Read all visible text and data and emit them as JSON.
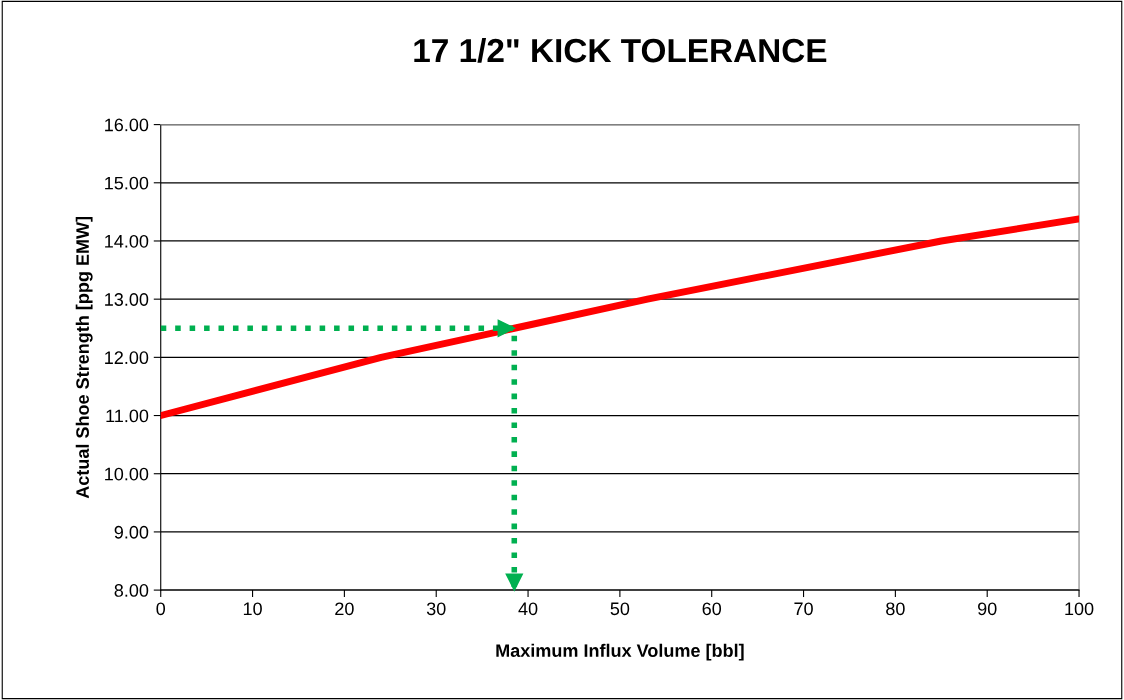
{
  "chart_data": {
    "type": "line",
    "title": "17 1/2\" KICK TOLERANCE",
    "xlabel": "Maximum Influx Volume [bbl]",
    "ylabel": "Actual Shoe Strength [ppg EMW]",
    "series": [
      {
        "color": "#ff0000",
        "x": [
          0,
          24,
          38.5,
          53,
          85,
          100
        ],
        "values": [
          11.0,
          12.0,
          12.5,
          13.0,
          14.0,
          14.38
        ],
        "line_style": "solid"
      },
      {
        "color": "#00b050",
        "x": [
          0,
          38.5,
          38.5
        ],
        "values": [
          12.5,
          12.5,
          8.0
        ],
        "line_style": "dotted"
      }
    ],
    "xlim": [
      0,
      100
    ],
    "xticks": [
      0,
      10,
      20,
      30,
      40,
      50,
      60,
      70,
      80,
      90,
      100
    ],
    "ylim": [
      8,
      16
    ],
    "yticks": [
      {
        "value": 8,
        "label": "8.00"
      },
      {
        "value": 9,
        "label": "9.00"
      },
      {
        "value": 10,
        "label": "10.00"
      },
      {
        "value": 11,
        "label": "11.00"
      },
      {
        "value": 12,
        "label": "12.00"
      },
      {
        "value": 13,
        "label": "13.00"
      },
      {
        "value": 14,
        "label": "14.00"
      },
      {
        "value": 15,
        "label": "15.00"
      },
      {
        "value": 16,
        "label": "16.00"
      }
    ],
    "grid": "y",
    "legend": false,
    "marker": "none"
  }
}
